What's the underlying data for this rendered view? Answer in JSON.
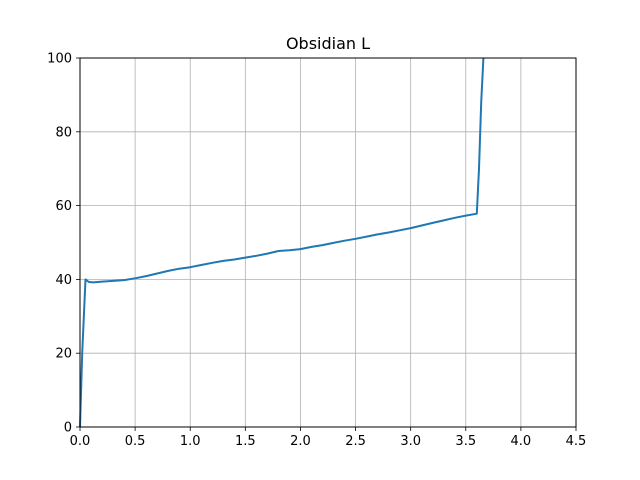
{
  "chart_data": {
    "type": "line",
    "title": "Obsidian L",
    "xlabel": "",
    "ylabel": "",
    "xlim": [
      0,
      4.5
    ],
    "ylim": [
      0,
      100
    ],
    "xticks": [
      0.0,
      0.5,
      1.0,
      1.5,
      2.0,
      2.5,
      3.0,
      3.5,
      4.0,
      4.5
    ],
    "xtick_labels": [
      "0.0",
      "0.5",
      "1.0",
      "1.5",
      "2.0",
      "2.5",
      "3.0",
      "3.5",
      "4.0",
      "4.5"
    ],
    "yticks": [
      0,
      20,
      40,
      60,
      80,
      100
    ],
    "ytick_labels": [
      "0",
      "20",
      "40",
      "60",
      "80",
      "100"
    ],
    "grid": true,
    "line_color": "#1f77b4",
    "series": [
      {
        "x": [
          0.0,
          0.02,
          0.05,
          0.08,
          0.12,
          0.2,
          0.3,
          0.4,
          0.5,
          0.6,
          0.7,
          0.8,
          0.9,
          1.0,
          1.1,
          1.2,
          1.3,
          1.4,
          1.5,
          1.6,
          1.7,
          1.8,
          1.9,
          2.0,
          2.1,
          2.2,
          2.3,
          2.4,
          2.5,
          2.6,
          2.7,
          2.8,
          2.9,
          3.0,
          3.1,
          3.2,
          3.3,
          3.4,
          3.5,
          3.6,
          3.62,
          3.64,
          3.66
        ],
        "y": [
          0.0,
          20.0,
          40.0,
          39.3,
          39.2,
          39.4,
          39.6,
          39.8,
          40.3,
          40.9,
          41.6,
          42.3,
          42.9,
          43.3,
          43.9,
          44.5,
          45.0,
          45.4,
          45.9,
          46.4,
          47.0,
          47.7,
          47.9,
          48.2,
          48.8,
          49.3,
          49.9,
          50.5,
          51.0,
          51.6,
          52.2,
          52.7,
          53.3,
          53.9,
          54.6,
          55.3,
          56.0,
          56.7,
          57.3,
          57.8,
          70.0,
          88.0,
          100.0
        ]
      }
    ]
  }
}
